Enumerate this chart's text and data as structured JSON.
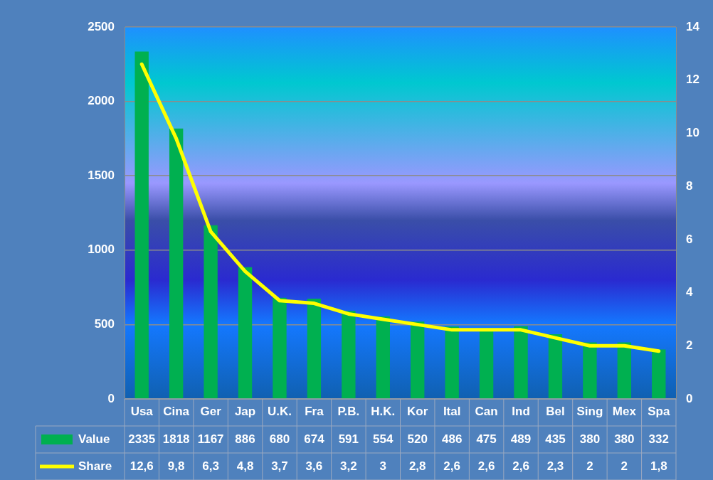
{
  "chart_data": {
    "type": "bar",
    "categories": [
      "Usa",
      "Cina",
      "Ger",
      "Jap",
      "U.K.",
      "Fra",
      "P.B.",
      "H.K.",
      "Kor",
      "Ital",
      "Can",
      "Ind",
      "Bel",
      "Sing",
      "Mex",
      "Spa"
    ],
    "series": [
      {
        "name": "Value",
        "color": "#00b050",
        "values": [
          2335,
          1818,
          1167,
          886,
          680,
          674,
          591,
          554,
          520,
          486,
          475,
          489,
          435,
          380,
          380,
          332
        ],
        "value_labels": [
          "2335",
          "1818",
          "1167",
          "886",
          "680",
          "674",
          "591",
          "554",
          "520",
          "486",
          "475",
          "489",
          "435",
          "380",
          "380",
          "332"
        ]
      },
      {
        "name": "Share",
        "type": "line",
        "axis": "y2",
        "color": "#ffff00",
        "values": [
          12.6,
          9.8,
          6.3,
          4.8,
          3.7,
          3.6,
          3.2,
          3,
          2.8,
          2.6,
          2.6,
          2.6,
          2.3,
          2,
          2,
          1.8
        ],
        "value_labels": [
          "12,6",
          "9,8",
          "6,3",
          "4,8",
          "3,7",
          "3,6",
          "3,2",
          "3",
          "2,8",
          "2,6",
          "2,6",
          "2,6",
          "2,3",
          "2",
          "2",
          "1,8"
        ]
      }
    ],
    "ylim": [
      0,
      2500
    ],
    "yticks": [
      0,
      500,
      1000,
      1500,
      2000,
      2500
    ],
    "y2lim": [
      0,
      14
    ],
    "y2ticks": [
      0,
      2,
      4,
      6,
      8,
      10,
      12,
      14
    ],
    "grid": "y",
    "legend": "bottom",
    "marker": "none",
    "line_style": "solid"
  }
}
